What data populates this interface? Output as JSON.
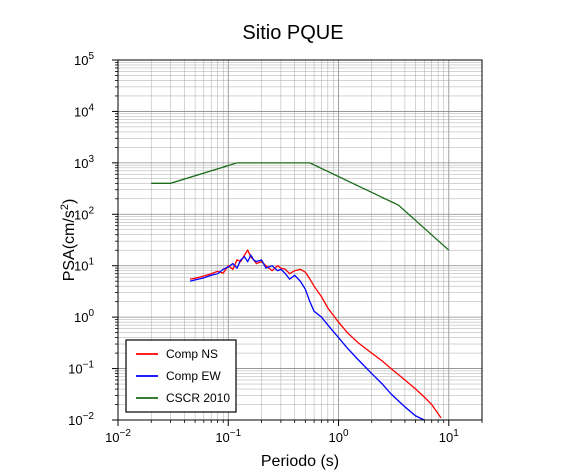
{
  "chart_data": {
    "type": "line",
    "title": "Sitio PQUE",
    "xlabel": "Periodo (s)",
    "ylabel_base": "PSA(cm/s",
    "ylabel_sup": "2",
    "ylabel_tail": ")",
    "x_scale": "log",
    "y_scale": "log",
    "xlim": [
      0.01,
      20
    ],
    "ylim": [
      0.01,
      100000
    ],
    "x_ticks": [
      {
        "base": "10",
        "exp": "−2",
        "value": 0.01
      },
      {
        "base": "10",
        "exp": "−1",
        "value": 0.1
      },
      {
        "base": "10",
        "exp": "0",
        "value": 1
      },
      {
        "base": "10",
        "exp": "1",
        "value": 10
      }
    ],
    "x_tick_values": [
      0.01,
      0.1,
      1,
      10
    ],
    "y_ticks": [
      {
        "base": "10",
        "exp": "−2",
        "value": 0.01
      },
      {
        "base": "10",
        "exp": "−1",
        "value": 0.1
      },
      {
        "base": "10",
        "exp": "0",
        "value": 1
      },
      {
        "base": "10",
        "exp": "1",
        "value": 10
      },
      {
        "base": "10",
        "exp": "2",
        "value": 100
      },
      {
        "base": "10",
        "exp": "3",
        "value": 1000
      },
      {
        "base": "10",
        "exp": "4",
        "value": 10000
      },
      {
        "base": "10",
        "exp": "5",
        "value": 100000
      }
    ],
    "grid": true,
    "legend_position": "bottom-left",
    "series": [
      {
        "name": "Comp NS",
        "color": "#ff0000",
        "x": [
          0.045,
          0.05,
          0.06,
          0.07,
          0.08,
          0.09,
          0.1,
          0.11,
          0.12,
          0.13,
          0.14,
          0.15,
          0.16,
          0.17,
          0.18,
          0.2,
          0.22,
          0.25,
          0.28,
          0.3,
          0.33,
          0.36,
          0.4,
          0.45,
          0.5,
          0.55,
          0.6,
          0.7,
          0.8,
          1.0,
          1.2,
          1.5,
          2.0,
          2.5,
          3.0,
          4.0,
          5.0,
          6.0,
          7.0,
          8.5
        ],
        "values": [
          5.5,
          5.7,
          6.3,
          7,
          7.8,
          7.2,
          10,
          8.5,
          13,
          12,
          16,
          20,
          15,
          13,
          11,
          12,
          10,
          8,
          10,
          9,
          8.5,
          7,
          8,
          8.5,
          7.5,
          5.5,
          4,
          2.5,
          1.5,
          0.8,
          0.5,
          0.32,
          0.2,
          0.14,
          0.1,
          0.06,
          0.04,
          0.028,
          0.02,
          0.011
        ]
      },
      {
        "name": "Comp EW",
        "color": "#0000ff",
        "x": [
          0.045,
          0.05,
          0.06,
          0.07,
          0.08,
          0.09,
          0.1,
          0.11,
          0.12,
          0.13,
          0.14,
          0.15,
          0.16,
          0.17,
          0.18,
          0.2,
          0.22,
          0.25,
          0.28,
          0.3,
          0.33,
          0.36,
          0.4,
          0.45,
          0.5,
          0.55,
          0.6,
          0.7,
          0.8,
          1.0,
          1.2,
          1.5,
          2.0,
          2.5,
          3.0,
          4.0,
          5.0,
          6.0
        ],
        "values": [
          5,
          5.3,
          5.8,
          6.5,
          7,
          8.5,
          9.5,
          11,
          9,
          13,
          15,
          12,
          16,
          13,
          12,
          13,
          9,
          10,
          8,
          8.5,
          7,
          5.5,
          6.5,
          5,
          3.5,
          2,
          1.3,
          1,
          0.7,
          0.4,
          0.25,
          0.15,
          0.08,
          0.05,
          0.032,
          0.018,
          0.012,
          0.01
        ]
      },
      {
        "name": "CSCR 2010",
        "color": "#1a6b1a",
        "x": [
          0.02,
          0.03,
          0.12,
          0.55,
          3.5,
          10
        ],
        "values": [
          400,
          400,
          1000,
          1000,
          150,
          20
        ]
      }
    ]
  }
}
